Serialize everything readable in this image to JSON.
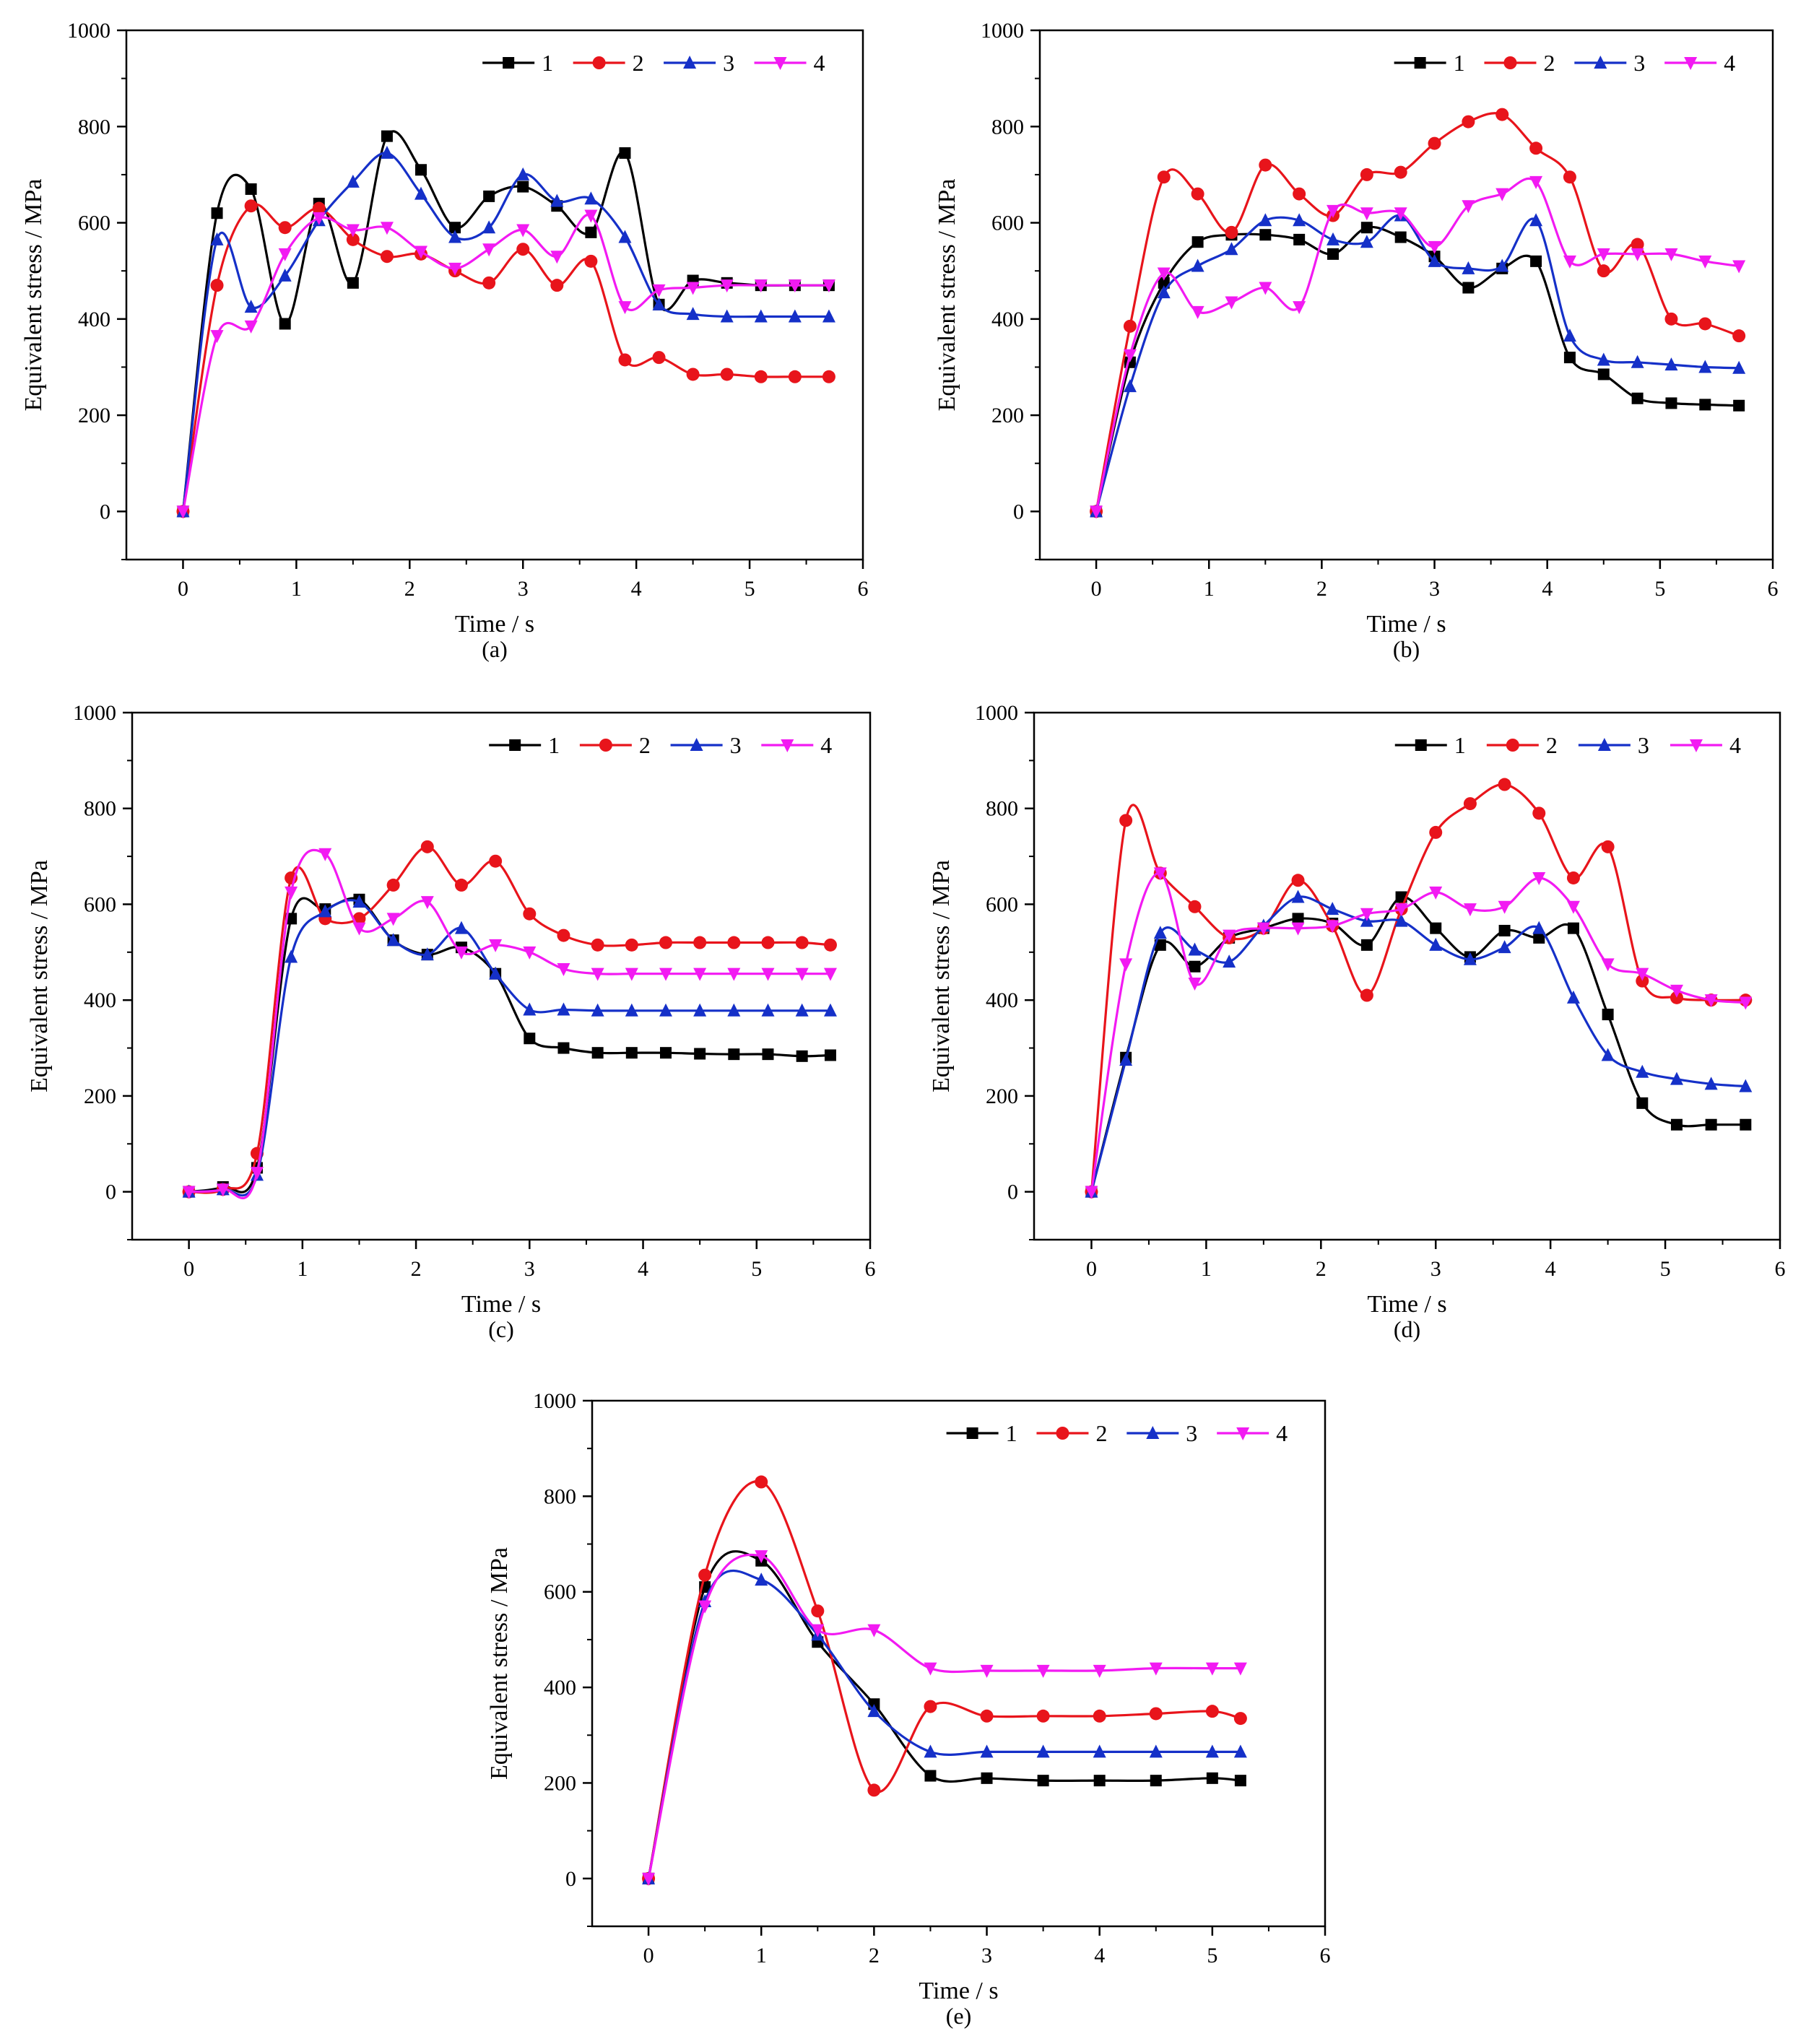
{
  "series_names": [
    "1",
    "2",
    "3",
    "4"
  ],
  "series_colors": [
    "#000000",
    "#e8141b",
    "#1530c8",
    "#f21af2"
  ],
  "series_markers": [
    "square",
    "circle",
    "triangle-up",
    "triangle-down"
  ],
  "chart_data": [
    {
      "type": "line",
      "panel_label": "(a)",
      "xlabel": "Time / s",
      "ylabel": "Equivalent stress / MPa",
      "xlim": [
        -0.5,
        6
      ],
      "ylim": [
        -100,
        1000
      ],
      "xticks": [
        0,
        1,
        2,
        3,
        4,
        5,
        6
      ],
      "yticks": [
        0,
        200,
        400,
        600,
        800,
        1000
      ],
      "legend_position": "top-right",
      "series": [
        {
          "name": "1",
          "x": [
            0,
            0.3,
            0.6,
            0.9,
            1.2,
            1.5,
            1.8,
            2.1,
            2.4,
            2.7,
            3.0,
            3.3,
            3.6,
            3.9,
            4.2,
            4.5,
            4.8,
            5.1,
            5.4,
            5.7
          ],
          "values": [
            0,
            620,
            670,
            390,
            640,
            475,
            780,
            710,
            590,
            655,
            675,
            635,
            580,
            745,
            430,
            480,
            475,
            470,
            470,
            470
          ]
        },
        {
          "name": "2",
          "x": [
            0,
            0.3,
            0.6,
            0.9,
            1.2,
            1.5,
            1.8,
            2.1,
            2.4,
            2.7,
            3.0,
            3.3,
            3.6,
            3.9,
            4.2,
            4.5,
            4.8,
            5.1,
            5.4,
            5.7
          ],
          "values": [
            0,
            470,
            635,
            590,
            630,
            565,
            530,
            535,
            500,
            475,
            545,
            470,
            520,
            315,
            320,
            285,
            285,
            280,
            280,
            280
          ]
        },
        {
          "name": "3",
          "x": [
            0,
            0.3,
            0.6,
            0.9,
            1.2,
            1.5,
            1.8,
            2.1,
            2.4,
            2.7,
            3.0,
            3.3,
            3.6,
            3.9,
            4.2,
            4.5,
            4.8,
            5.1,
            5.4,
            5.7
          ],
          "values": [
            0,
            565,
            425,
            490,
            605,
            685,
            745,
            660,
            570,
            590,
            700,
            645,
            650,
            570,
            430,
            410,
            405,
            405,
            405,
            405
          ]
        },
        {
          "name": "4",
          "x": [
            0,
            0.3,
            0.6,
            0.9,
            1.2,
            1.5,
            1.8,
            2.1,
            2.4,
            2.7,
            3.0,
            3.3,
            3.6,
            3.9,
            4.2,
            4.5,
            4.8,
            5.1,
            5.4,
            5.7
          ],
          "values": [
            0,
            365,
            385,
            535,
            610,
            585,
            590,
            540,
            505,
            545,
            585,
            530,
            615,
            425,
            460,
            465,
            470,
            470,
            470,
            470
          ]
        }
      ]
    },
    {
      "type": "line",
      "panel_label": "(b)",
      "xlabel": "Time / s",
      "ylabel": "Equivalent stress / MPa",
      "xlim": [
        -0.5,
        6
      ],
      "ylim": [
        -100,
        1000
      ],
      "xticks": [
        0,
        1,
        2,
        3,
        4,
        5,
        6
      ],
      "yticks": [
        0,
        200,
        400,
        600,
        800,
        1000
      ],
      "legend_position": "top-right",
      "series": [
        {
          "name": "1",
          "x": [
            0,
            0.3,
            0.6,
            0.9,
            1.2,
            1.5,
            1.8,
            2.1,
            2.4,
            2.7,
            3.0,
            3.3,
            3.6,
            3.9,
            4.2,
            4.5,
            4.8,
            5.1,
            5.4,
            5.7
          ],
          "values": [
            0,
            310,
            475,
            560,
            575,
            575,
            565,
            535,
            590,
            570,
            530,
            465,
            505,
            520,
            320,
            285,
            235,
            225,
            222,
            220
          ]
        },
        {
          "name": "2",
          "x": [
            0,
            0.3,
            0.6,
            0.9,
            1.2,
            1.5,
            1.8,
            2.1,
            2.4,
            2.7,
            3.0,
            3.3,
            3.6,
            3.9,
            4.2,
            4.5,
            4.8,
            5.1,
            5.4,
            5.7
          ],
          "values": [
            0,
            385,
            695,
            660,
            580,
            720,
            660,
            615,
            700,
            705,
            765,
            810,
            825,
            755,
            695,
            500,
            555,
            400,
            390,
            365
          ]
        },
        {
          "name": "3",
          "x": [
            0,
            0.3,
            0.6,
            0.9,
            1.2,
            1.5,
            1.8,
            2.1,
            2.4,
            2.7,
            3.0,
            3.3,
            3.6,
            3.9,
            4.2,
            4.5,
            4.8,
            5.1,
            5.4,
            5.7
          ],
          "values": [
            0,
            260,
            455,
            510,
            545,
            605,
            605,
            565,
            560,
            615,
            520,
            505,
            510,
            605,
            365,
            315,
            310,
            305,
            300,
            298
          ]
        },
        {
          "name": "4",
          "x": [
            0,
            0.3,
            0.6,
            0.9,
            1.2,
            1.5,
            1.8,
            2.1,
            2.4,
            2.7,
            3.0,
            3.3,
            3.6,
            3.9,
            4.2,
            4.5,
            4.8,
            5.1,
            5.4,
            5.7
          ],
          "values": [
            0,
            325,
            495,
            415,
            435,
            465,
            425,
            625,
            620,
            620,
            550,
            635,
            660,
            685,
            520,
            535,
            535,
            535,
            520,
            510
          ]
        }
      ]
    },
    {
      "type": "line",
      "panel_label": "(c)",
      "xlabel": "Time / s",
      "ylabel": "Equivalent stress / MPa",
      "xlim": [
        -0.5,
        6
      ],
      "ylim": [
        -100,
        1000
      ],
      "xticks": [
        0,
        1,
        2,
        3,
        4,
        5,
        6
      ],
      "yticks": [
        0,
        200,
        400,
        600,
        800,
        1000
      ],
      "legend_position": "top-right",
      "series": [
        {
          "name": "1",
          "x": [
            0,
            0.3,
            0.6,
            0.9,
            1.2,
            1.5,
            1.8,
            2.1,
            2.4,
            2.7,
            3.0,
            3.3,
            3.6,
            3.9,
            4.2,
            4.5,
            4.8,
            5.1,
            5.4,
            5.65
          ],
          "values": [
            0,
            10,
            50,
            570,
            590,
            610,
            525,
            495,
            510,
            455,
            320,
            300,
            290,
            290,
            290,
            288,
            287,
            287,
            283,
            285
          ]
        },
        {
          "name": "2",
          "x": [
            0,
            0.3,
            0.6,
            0.9,
            1.2,
            1.5,
            1.8,
            2.1,
            2.4,
            2.7,
            3.0,
            3.3,
            3.6,
            3.9,
            4.2,
            4.5,
            4.8,
            5.1,
            5.4,
            5.65
          ],
          "values": [
            0,
            5,
            80,
            655,
            570,
            570,
            640,
            720,
            640,
            690,
            580,
            535,
            515,
            515,
            520,
            520,
            520,
            520,
            520,
            515
          ]
        },
        {
          "name": "3",
          "x": [
            0,
            0.3,
            0.6,
            0.9,
            1.2,
            1.5,
            1.8,
            2.1,
            2.4,
            2.7,
            3.0,
            3.3,
            3.6,
            3.9,
            4.2,
            4.5,
            4.8,
            5.1,
            5.4,
            5.65
          ],
          "values": [
            0,
            5,
            35,
            490,
            585,
            605,
            525,
            495,
            550,
            455,
            380,
            380,
            378,
            378,
            378,
            378,
            378,
            378,
            378,
            378
          ]
        },
        {
          "name": "4",
          "x": [
            0,
            0.3,
            0.6,
            0.9,
            1.2,
            1.5,
            1.8,
            2.1,
            2.4,
            2.7,
            3.0,
            3.3,
            3.6,
            3.9,
            4.2,
            4.5,
            4.8,
            5.1,
            5.4,
            5.65
          ],
          "values": [
            0,
            5,
            40,
            625,
            705,
            550,
            570,
            605,
            500,
            515,
            500,
            465,
            455,
            455,
            455,
            455,
            455,
            455,
            455,
            455
          ]
        }
      ]
    },
    {
      "type": "line",
      "panel_label": "(d)",
      "xlabel": "Time / s",
      "ylabel": "Equivalent stress / MPa",
      "xlim": [
        -0.5,
        6
      ],
      "ylim": [
        -100,
        1000
      ],
      "xticks": [
        0,
        1,
        2,
        3,
        4,
        5,
        6
      ],
      "yticks": [
        0,
        200,
        400,
        600,
        800,
        1000
      ],
      "legend_position": "top-right",
      "series": [
        {
          "name": "1",
          "x": [
            0,
            0.3,
            0.6,
            0.9,
            1.2,
            1.5,
            1.8,
            2.1,
            2.4,
            2.7,
            3.0,
            3.3,
            3.6,
            3.9,
            4.2,
            4.5,
            4.8,
            5.1,
            5.4,
            5.7
          ],
          "values": [
            0,
            280,
            515,
            470,
            530,
            550,
            570,
            560,
            515,
            615,
            550,
            490,
            545,
            530,
            550,
            370,
            185,
            140,
            140,
            140
          ]
        },
        {
          "name": "2",
          "x": [
            0,
            0.3,
            0.6,
            0.9,
            1.2,
            1.5,
            1.8,
            2.1,
            2.4,
            2.7,
            3.0,
            3.3,
            3.6,
            3.9,
            4.2,
            4.5,
            4.8,
            5.1,
            5.4,
            5.7
          ],
          "values": [
            0,
            775,
            665,
            595,
            530,
            550,
            650,
            555,
            410,
            590,
            750,
            810,
            850,
            790,
            655,
            720,
            440,
            405,
            400,
            400
          ]
        },
        {
          "name": "3",
          "x": [
            0,
            0.3,
            0.6,
            0.9,
            1.2,
            1.5,
            1.8,
            2.1,
            2.4,
            2.7,
            3.0,
            3.3,
            3.6,
            3.9,
            4.2,
            4.5,
            4.8,
            5.1,
            5.4,
            5.7
          ],
          "values": [
            0,
            275,
            540,
            505,
            480,
            555,
            615,
            590,
            565,
            565,
            515,
            485,
            510,
            550,
            405,
            285,
            250,
            235,
            225,
            220
          ]
        },
        {
          "name": "4",
          "x": [
            0,
            0.3,
            0.6,
            0.9,
            1.2,
            1.5,
            1.8,
            2.1,
            2.4,
            2.7,
            3.0,
            3.3,
            3.6,
            3.9,
            4.2,
            4.5,
            4.8,
            5.1,
            5.4,
            5.7
          ],
          "values": [
            0,
            475,
            665,
            435,
            535,
            550,
            550,
            555,
            580,
            590,
            625,
            590,
            595,
            655,
            595,
            475,
            455,
            420,
            400,
            395
          ]
        }
      ]
    },
    {
      "type": "line",
      "panel_label": "(e)",
      "xlabel": "Time / s",
      "ylabel": "Equivalent stress / MPa",
      "xlim": [
        -0.5,
        6
      ],
      "ylim": [
        -100,
        1000
      ],
      "xticks": [
        0,
        1,
        2,
        3,
        4,
        5,
        6
      ],
      "yticks": [
        0,
        200,
        400,
        600,
        800,
        1000
      ],
      "legend_position": "top-right",
      "series": [
        {
          "name": "1",
          "x": [
            0,
            0.5,
            1.0,
            1.5,
            2.0,
            2.5,
            3.0,
            3.5,
            4.0,
            4.5,
            5.0,
            5.25
          ],
          "values": [
            0,
            610,
            665,
            495,
            365,
            215,
            210,
            205,
            205,
            205,
            210,
            205
          ]
        },
        {
          "name": "2",
          "x": [
            0,
            0.5,
            1.0,
            1.5,
            2.0,
            2.5,
            3.0,
            3.5,
            4.0,
            4.5,
            5.0,
            5.25
          ],
          "values": [
            0,
            635,
            830,
            560,
            185,
            360,
            340,
            340,
            340,
            345,
            350,
            335
          ]
        },
        {
          "name": "3",
          "x": [
            0,
            0.5,
            1.0,
            1.5,
            2.0,
            2.5,
            3.0,
            3.5,
            4.0,
            4.5,
            5.0,
            5.25
          ],
          "values": [
            0,
            580,
            625,
            510,
            350,
            265,
            265,
            265,
            265,
            265,
            265,
            265
          ]
        },
        {
          "name": "4",
          "x": [
            0,
            0.5,
            1.0,
            1.5,
            2.0,
            2.5,
            3.0,
            3.5,
            4.0,
            4.5,
            5.0,
            5.25
          ],
          "values": [
            0,
            570,
            675,
            520,
            520,
            440,
            435,
            435,
            435,
            440,
            440,
            440
          ]
        }
      ]
    }
  ]
}
